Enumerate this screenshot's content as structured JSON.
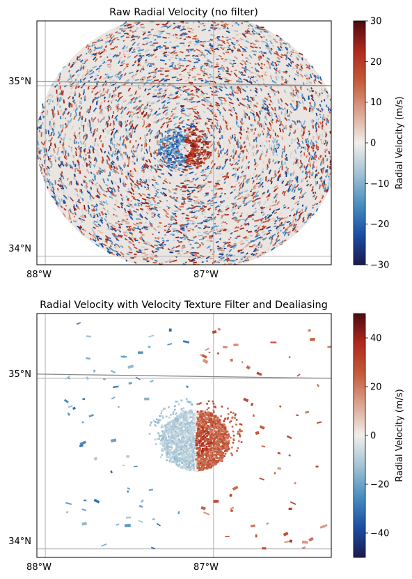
{
  "chart_data": [
    {
      "type": "heatmap",
      "title": "Raw Radial Velocity (no filter)",
      "xlabel": "",
      "ylabel": "",
      "x_ticks": [
        "88°W",
        "87°W"
      ],
      "x_tick_values": [
        -88,
        -87
      ],
      "y_ticks": [
        "35°N",
        "34°N"
      ],
      "y_tick_values": [
        35,
        34
      ],
      "xlim": [
        -88.05,
        -86.3
      ],
      "ylim": [
        33.95,
        35.38
      ],
      "grid": true,
      "pattern": "noisy velocity field across full radar circle with a small bipolar couplet near the center",
      "colorbar": {
        "label": "Radial Velocity (m/s)",
        "range": [
          -30,
          30
        ],
        "tick_values": [
          30,
          20,
          10,
          0,
          -10,
          -20,
          -30
        ],
        "tick_labels": [
          "30",
          "20",
          "10",
          "0",
          "−10",
          "−20",
          "−30"
        ],
        "colormap_stops": [
          "#1a1a4f",
          "#1c4fa3",
          "#4a8fc0",
          "#a3c3d4",
          "#f0eeeb",
          "#dca590",
          "#c45c3c",
          "#b02a1e",
          "#4d0b0f"
        ]
      }
    },
    {
      "type": "heatmap",
      "title": "Radial Velocity with Velocity Texture Filter and Dealiasing",
      "xlabel": "",
      "ylabel": "",
      "x_ticks": [
        "88°W",
        "87°W"
      ],
      "x_tick_values": [
        -88,
        -87
      ],
      "y_ticks": [
        "35°N",
        "34°N"
      ],
      "y_tick_values": [
        35,
        34
      ],
      "xlim": [
        -88.05,
        -86.3
      ],
      "ylim": [
        33.95,
        35.38
      ],
      "grid": true,
      "pattern": "filtered field with a central circulation: inbound (blue) west half, outbound (red) east half, and scattered small echoes",
      "colorbar": {
        "label": "Radial Velocity (m/s)",
        "range": [
          -50,
          50
        ],
        "tick_values": [
          40,
          20,
          0,
          -20,
          -40
        ],
        "tick_labels": [
          "40",
          "20",
          "0",
          "−20",
          "−40"
        ],
        "colormap_stops": [
          "#1a1a4f",
          "#1c4fa3",
          "#4a8fc0",
          "#a3c3d4",
          "#f0eeeb",
          "#dca590",
          "#c45c3c",
          "#b02a1e",
          "#4d0b0f"
        ]
      }
    }
  ]
}
